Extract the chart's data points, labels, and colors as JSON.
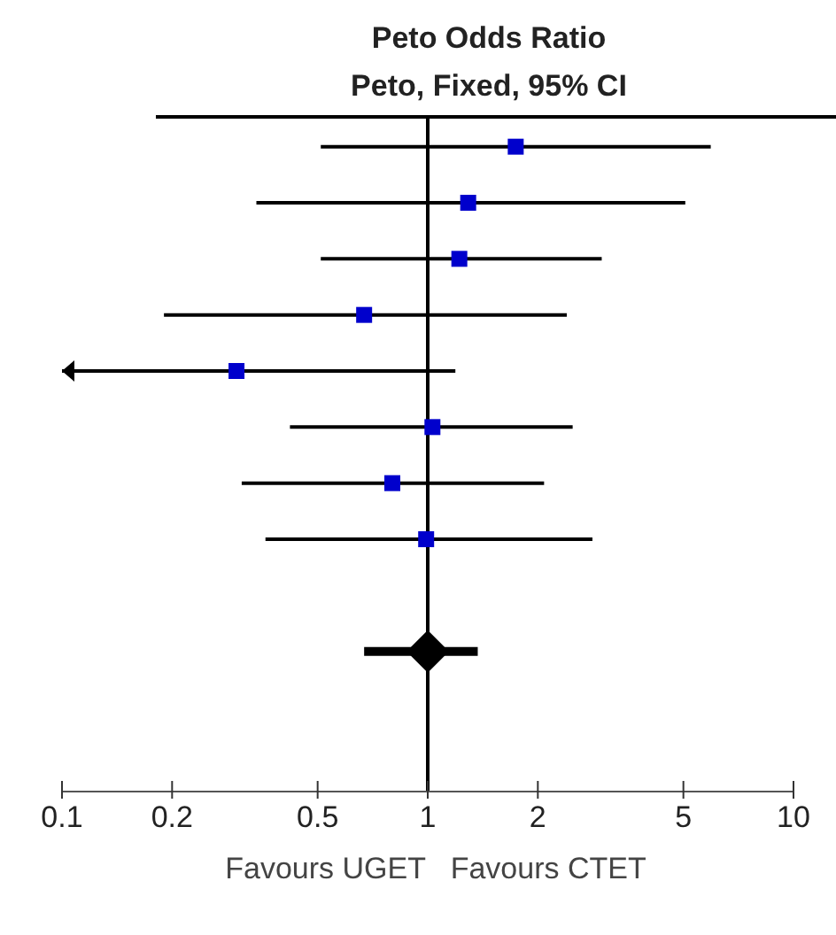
{
  "chart_data": {
    "type": "scatter",
    "title": "Peto Odds Ratio",
    "subtitle": "Peto, Fixed, 95% CI",
    "xlabel": "Favours UGET   Favours CTET",
    "orientation": "horizontal",
    "log": "x",
    "xlim": [
      0.1,
      10
    ],
    "xticks": [
      0.1,
      0.2,
      0.5,
      1,
      2,
      5,
      10
    ],
    "categories": [
      null,
      null,
      null,
      null,
      null,
      null,
      null,
      null,
      null,
      null,
      null,
      null
    ],
    "series": [
      {
        "type": "scatter",
        "color": "#0000cc",
        "marker": "square",
        "values": [
          1.74,
          1.29,
          1.22,
          0.67,
          0.3,
          1.03,
          0.8,
          0.99,
          null,
          null,
          null,
          null
        ],
        "errors": [
          [
            0.51,
            5.94
          ],
          [
            0.34,
            5.06
          ],
          [
            0.51,
            2.99
          ],
          [
            0.19,
            2.4
          ],
          [
            0.1,
            1.19
          ],
          [
            0.42,
            2.49
          ],
          [
            0.31,
            2.08
          ],
          [
            0.36,
            2.82
          ],
          null,
          null,
          null,
          null
        ]
      },
      {
        "type": "scatter",
        "color": "#000000",
        "marker": "diamond",
        "values": [
          null,
          null,
          null,
          null,
          null,
          null,
          null,
          null,
          null,
          1.0,
          null,
          null
        ],
        "errors": [
          null,
          null,
          null,
          null,
          null,
          null,
          null,
          null,
          null,
          [
            0.67,
            1.37
          ],
          null,
          null
        ]
      }
    ],
    "ref_lines": [
      {
        "axis": "x",
        "value": 1,
        "color": "#000000"
      }
    ]
  }
}
